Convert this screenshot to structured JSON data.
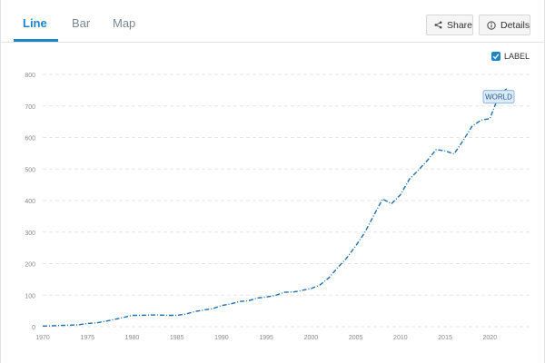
{
  "tabs": [
    {
      "label": "Line",
      "active": true
    },
    {
      "label": "Bar",
      "active": false
    },
    {
      "label": "Map",
      "active": false
    }
  ],
  "toolbar": {
    "share_label": "Share",
    "details_label": "Details"
  },
  "label_toggle": {
    "label": "LABEL",
    "checked": true
  },
  "colors": {
    "accent": "#1e86c8",
    "line": "#1f6fad",
    "grid": "#e6e6e6"
  },
  "chart_data": {
    "type": "line",
    "title": "",
    "xlabel": "",
    "ylabel": "",
    "xlim": [
      1970,
      2022
    ],
    "ylim": [
      0,
      800
    ],
    "yticks": [
      0,
      100,
      200,
      300,
      400,
      500,
      600,
      700,
      800
    ],
    "xticks": [
      1970,
      1975,
      1980,
      1985,
      1990,
      1995,
      2000,
      2005,
      2010,
      2015,
      2020
    ],
    "grid": true,
    "line_style": "dash-dot",
    "series": [
      {
        "name": "WORLD",
        "x": [
          1970,
          1971,
          1972,
          1973,
          1974,
          1975,
          1976,
          1977,
          1978,
          1979,
          1980,
          1981,
          1982,
          1983,
          1984,
          1985,
          1986,
          1987,
          1988,
          1989,
          1990,
          1991,
          1992,
          1993,
          1994,
          1995,
          1996,
          1997,
          1998,
          1999,
          2000,
          2001,
          2002,
          2003,
          2004,
          2005,
          2006,
          2007,
          2008,
          2009,
          2010,
          2011,
          2012,
          2013,
          2014,
          2015,
          2016,
          2017,
          2018,
          2019,
          2020,
          2021,
          2022
        ],
        "y": [
          2,
          3,
          4,
          5,
          6,
          10,
          12,
          17,
          23,
          29,
          36,
          36,
          37,
          37,
          36,
          36,
          40,
          48,
          53,
          57,
          67,
          72,
          80,
          82,
          91,
          94,
          99,
          109,
          110,
          115,
          121,
          132,
          155,
          188,
          218,
          256,
          298,
          352,
          405,
          390,
          418,
          468,
          496,
          527,
          562,
          557,
          548,
          590,
          635,
          655,
          660,
          733,
          758
        ]
      }
    ],
    "end_label": "WORLD"
  }
}
